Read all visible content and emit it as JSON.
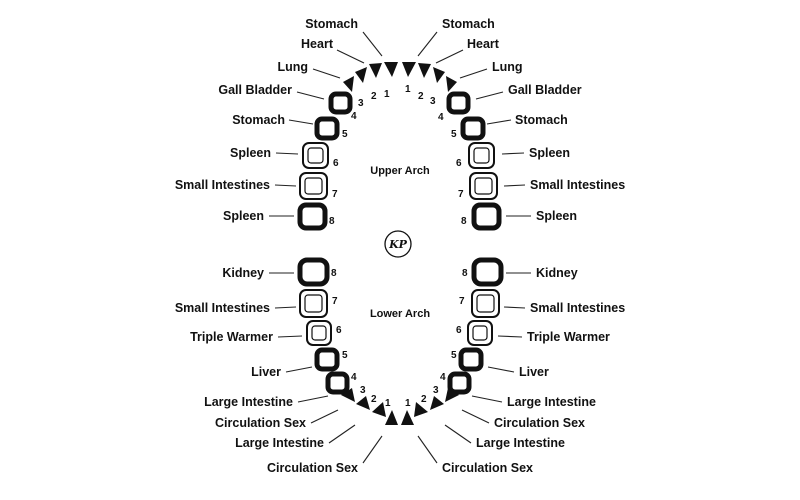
{
  "upper_arch_label": "Upper Arch",
  "lower_arch_label": "Lower Arch",
  "logo": "KP",
  "upper": {
    "left": [
      {
        "num": "1",
        "organ": "Stomach"
      },
      {
        "num": "2",
        "organ": "Heart"
      },
      {
        "num": "3",
        "organ": "Lung"
      },
      {
        "num": "3",
        "organ": "Gall Bladder"
      },
      {
        "num": "4",
        "organ": "Stomach"
      },
      {
        "num": "5",
        "organ": "Spleen"
      },
      {
        "num": "6",
        "organ": "Small Intestines"
      },
      {
        "num": "7",
        "organ": "Spleen"
      },
      {
        "num": "8",
        "organ": ""
      }
    ],
    "right": [
      {
        "num": "1",
        "organ": "Stomach"
      },
      {
        "num": "2",
        "organ": "Heart"
      },
      {
        "num": "3",
        "organ": "Lung"
      },
      {
        "num": "3",
        "organ": "Gall Bladder"
      },
      {
        "num": "4",
        "organ": "Stomach"
      },
      {
        "num": "5",
        "organ": "Spleen"
      },
      {
        "num": "6",
        "organ": "Small Intestines"
      },
      {
        "num": "7",
        "organ": "Spleen"
      },
      {
        "num": "8",
        "organ": ""
      }
    ]
  },
  "lower": {
    "left": [
      {
        "num": "8",
        "organ": "Kidney"
      },
      {
        "num": "7",
        "organ": "Small Intestines"
      },
      {
        "num": "6",
        "organ": "Triple Warmer"
      },
      {
        "num": "5",
        "organ": "Liver"
      },
      {
        "num": "4",
        "organ": "Large Intestine"
      },
      {
        "num": "3",
        "organ": "Circulation Sex"
      },
      {
        "num": "2",
        "organ": "Large Intestine"
      },
      {
        "num": "1",
        "organ": "Circulation Sex"
      }
    ],
    "right": [
      {
        "num": "8",
        "organ": "Kidney"
      },
      {
        "num": "7",
        "organ": "Small Intestines"
      },
      {
        "num": "6",
        "organ": "Triple Warmer"
      },
      {
        "num": "5",
        "organ": "Liver"
      },
      {
        "num": "4",
        "organ": "Large Intestine"
      },
      {
        "num": "3",
        "organ": "Circulation Sex"
      },
      {
        "num": "2",
        "organ": "Large Intestine"
      },
      {
        "num": "1",
        "organ": "Circulation Sex"
      }
    ]
  }
}
